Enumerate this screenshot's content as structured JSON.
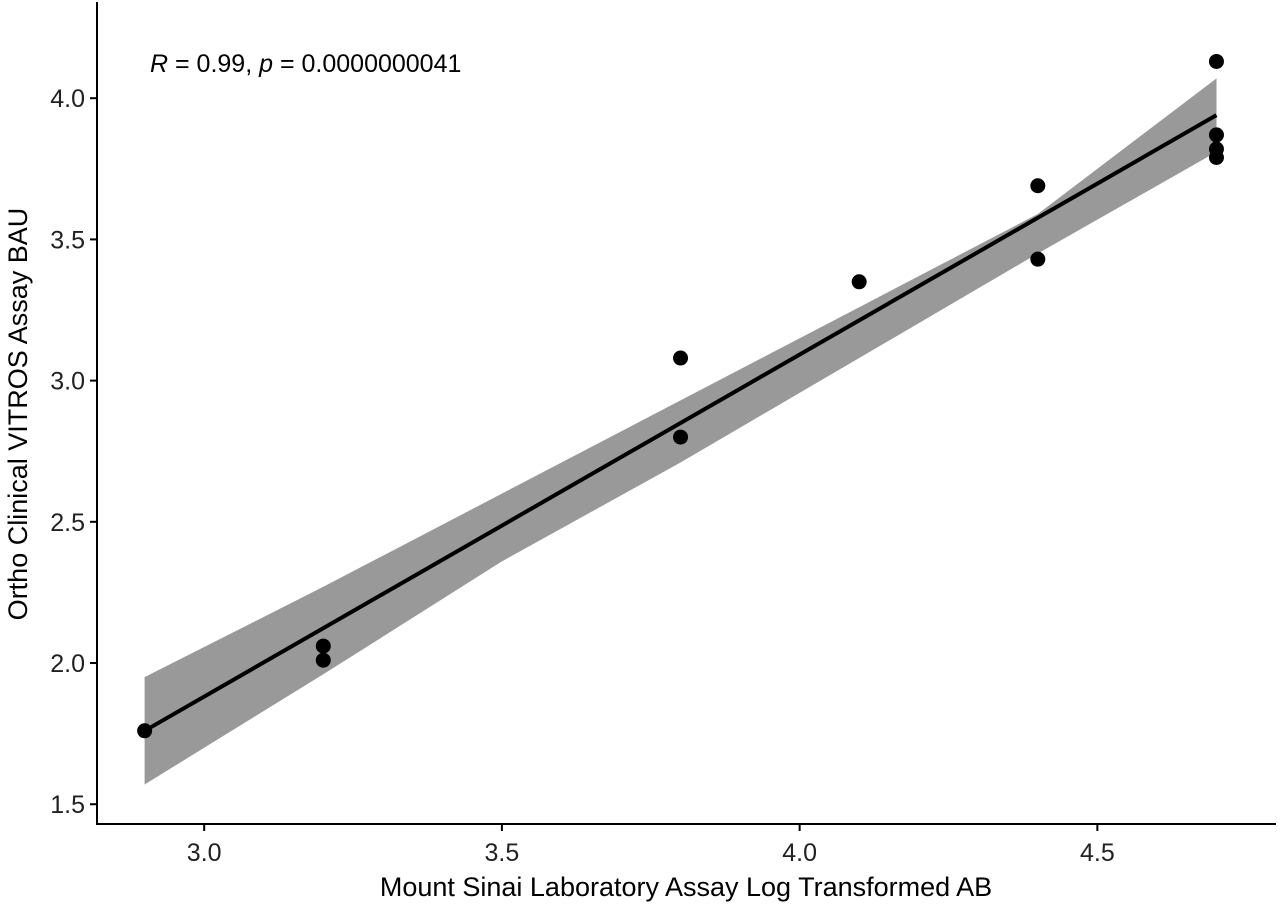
{
  "chart_data": {
    "type": "scatter",
    "title": "",
    "xlabel": "Mount Sinai Laboratory Assay Log Transformed AB",
    "ylabel": "Ortho Clinical VITROS Assay BAU",
    "xlim": [
      2.82,
      4.8
    ],
    "ylim": [
      1.43,
      4.33
    ],
    "x_ticks": [
      3.0,
      3.5,
      4.0,
      4.5
    ],
    "x_tick_labels": [
      "3.0",
      "3.5",
      "4.0",
      "4.5"
    ],
    "y_ticks": [
      1.5,
      2.0,
      2.5,
      3.0,
      3.5,
      4.0
    ],
    "y_tick_labels": [
      "1.5",
      "2.0",
      "2.5",
      "3.0",
      "3.5",
      "4.0"
    ],
    "grid": false,
    "legend": "none",
    "annotation": {
      "r_symbol": "R",
      "r_text": " = 0.99, ",
      "p_symbol": "p",
      "p_text": " = 0.0000000041"
    },
    "points": {
      "x": [
        2.9,
        3.2,
        3.2,
        3.8,
        3.8,
        4.1,
        4.4,
        4.4,
        4.7,
        4.7,
        4.7,
        4.7
      ],
      "y": [
        1.76,
        2.01,
        2.06,
        2.8,
        3.08,
        3.35,
        3.43,
        3.69,
        3.79,
        3.82,
        3.87,
        4.13
      ]
    },
    "fit_line": {
      "x": [
        2.9,
        4.7
      ],
      "y": [
        1.76,
        3.94
      ]
    },
    "confidence_band": {
      "x": [
        2.9,
        3.2,
        3.5,
        3.8,
        4.1,
        4.4,
        4.7
      ],
      "lower": [
        1.57,
        1.96,
        2.36,
        2.71,
        3.08,
        3.45,
        3.81
      ],
      "upper": [
        1.95,
        2.27,
        2.6,
        2.93,
        3.26,
        3.59,
        4.07
      ]
    },
    "colors": {
      "points": "#000000",
      "fit_line": "#000000",
      "band": "#999999",
      "axis": "#000000"
    }
  }
}
